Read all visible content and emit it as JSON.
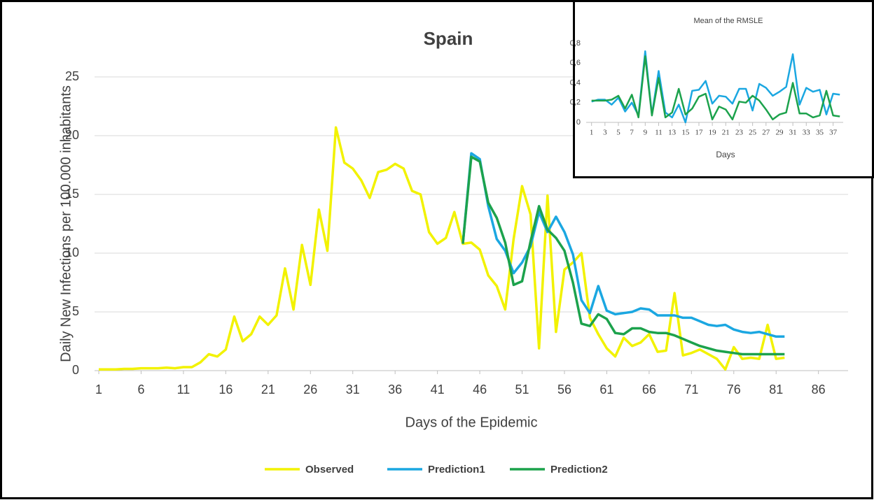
{
  "chart_data": [
    {
      "type": "line",
      "title": "Spain",
      "x_label": "Days of the Epidemic",
      "y_label": "Daily New Infections per 100.000 inhabitants",
      "x": [
        1,
        2,
        3,
        4,
        5,
        6,
        7,
        8,
        9,
        10,
        11,
        12,
        13,
        14,
        15,
        16,
        17,
        18,
        19,
        20,
        21,
        22,
        23,
        24,
        25,
        26,
        27,
        28,
        29,
        30,
        31,
        32,
        33,
        34,
        35,
        36,
        37,
        38,
        39,
        40,
        41,
        42,
        43,
        44,
        45,
        46,
        47,
        48,
        49,
        50,
        51,
        52,
        53,
        54,
        55,
        56,
        57,
        58,
        59,
        60,
        61,
        62,
        63,
        64,
        65,
        66,
        67,
        68,
        69,
        70,
        71,
        72,
        73,
        74,
        75,
        76,
        77,
        78,
        79,
        80,
        81,
        82
      ],
      "series": [
        {
          "name": "Observed",
          "color": "#f2f200",
          "values": [
            0.1,
            0.1,
            0.1,
            0.15,
            0.15,
            0.2,
            0.2,
            0.2,
            0.25,
            0.2,
            0.3,
            0.3,
            0.7,
            1.4,
            1.2,
            1.8,
            4.6,
            2.5,
            3.1,
            4.6,
            3.9,
            4.7,
            8.7,
            5.2,
            10.7,
            7.3,
            13.7,
            10.2,
            20.7,
            17.7,
            17.2,
            16.2,
            14.7,
            16.9,
            17.1,
            17.6,
            17.2,
            15.3,
            15.0,
            11.8,
            10.8,
            11.3,
            13.5,
            10.8,
            10.9,
            10.3,
            8.1,
            7.2,
            5.2,
            11.2,
            15.7,
            13.3,
            1.9,
            14.9,
            3.3,
            8.6,
            9.2,
            10.0,
            4.5,
            3.1,
            1.9,
            1.2,
            2.8,
            2.1,
            2.4,
            3.1,
            1.6,
            1.7,
            6.6,
            1.3,
            1.5,
            1.8,
            1.4,
            1.0,
            0.1,
            2.0,
            1.0,
            1.1,
            1.0,
            3.9,
            1.0,
            1.1
          ]
        },
        {
          "name": "Prediction1",
          "color": "#1ba7e1",
          "values": [
            null,
            null,
            null,
            null,
            null,
            null,
            null,
            null,
            null,
            null,
            null,
            null,
            null,
            null,
            null,
            null,
            null,
            null,
            null,
            null,
            null,
            null,
            null,
            null,
            null,
            null,
            null,
            null,
            null,
            null,
            null,
            null,
            null,
            null,
            null,
            null,
            null,
            null,
            null,
            null,
            null,
            null,
            null,
            10.8,
            18.5,
            18.0,
            14.0,
            11.2,
            10.2,
            8.3,
            9.2,
            10.6,
            13.5,
            11.8,
            13.1,
            11.8,
            9.9,
            6.0,
            4.9,
            7.2,
            5.1,
            4.8,
            4.9,
            5.0,
            5.3,
            5.2,
            4.7,
            4.7,
            4.7,
            4.5,
            4.5,
            4.2,
            3.9,
            3.8,
            3.9,
            3.5,
            3.3,
            3.2,
            3.3,
            3.1,
            2.9,
            2.9
          ]
        },
        {
          "name": "Prediction2",
          "color": "#1ca24c",
          "values": [
            null,
            null,
            null,
            null,
            null,
            null,
            null,
            null,
            null,
            null,
            null,
            null,
            null,
            null,
            null,
            null,
            null,
            null,
            null,
            null,
            null,
            null,
            null,
            null,
            null,
            null,
            null,
            null,
            null,
            null,
            null,
            null,
            null,
            null,
            null,
            null,
            null,
            null,
            null,
            null,
            null,
            null,
            null,
            10.8,
            18.2,
            17.8,
            14.3,
            13.0,
            10.9,
            7.3,
            7.6,
            11.0,
            14.0,
            12.0,
            11.3,
            10.2,
            7.5,
            4.0,
            3.8,
            4.8,
            4.4,
            3.2,
            3.1,
            3.6,
            3.6,
            3.3,
            3.2,
            3.2,
            3.0,
            2.7,
            2.4,
            2.1,
            1.9,
            1.7,
            1.6,
            1.5,
            1.4,
            1.4,
            1.4,
            1.4,
            1.4,
            1.4
          ]
        }
      ],
      "xlim": [
        0.5,
        89.5
      ],
      "xticks": [
        1,
        6,
        11,
        16,
        21,
        26,
        31,
        36,
        41,
        46,
        51,
        56,
        61,
        66,
        71,
        76,
        81,
        86
      ],
      "ylim": [
        0,
        25
      ],
      "yticks": [
        0,
        5,
        10,
        15,
        20,
        25
      ],
      "grid": true,
      "legend": "bottom"
    },
    {
      "type": "line",
      "title": "Mean of the RMSLE",
      "x_label": "Days",
      "x": [
        1,
        2,
        3,
        4,
        5,
        6,
        7,
        8,
        9,
        10,
        11,
        12,
        13,
        14,
        15,
        16,
        17,
        18,
        19,
        20,
        21,
        22,
        23,
        24,
        25,
        26,
        27,
        28,
        29,
        30,
        31,
        32,
        33,
        34,
        35,
        36,
        37,
        38
      ],
      "series": [
        {
          "color": "#1ba7e1",
          "values": [
            0.21,
            0.23,
            0.23,
            0.18,
            0.25,
            0.11,
            0.2,
            0.07,
            0.72,
            0.08,
            0.52,
            0.1,
            0.05,
            0.18,
            0.0,
            0.32,
            0.33,
            0.42,
            0.19,
            0.27,
            0.26,
            0.19,
            0.34,
            0.34,
            0.12,
            0.39,
            0.35,
            0.27,
            0.31,
            0.36,
            0.69,
            0.18,
            0.35,
            0.31,
            0.33,
            0.08,
            0.29,
            0.28
          ]
        },
        {
          "color": "#1ca24c",
          "values": [
            0.22,
            0.22,
            0.22,
            0.23,
            0.27,
            0.14,
            0.28,
            0.05,
            0.67,
            0.07,
            0.45,
            0.05,
            0.1,
            0.34,
            0.08,
            0.14,
            0.26,
            0.29,
            0.03,
            0.16,
            0.13,
            0.03,
            0.21,
            0.2,
            0.27,
            0.22,
            0.13,
            0.03,
            0.08,
            0.1,
            0.4,
            0.09,
            0.09,
            0.05,
            0.07,
            0.32,
            0.07,
            0.06
          ]
        }
      ],
      "xlim": [
        0.2,
        38.5
      ],
      "xticks": [
        1,
        3,
        5,
        7,
        9,
        11,
        13,
        15,
        17,
        19,
        21,
        23,
        25,
        27,
        29,
        31,
        33,
        35,
        37
      ],
      "ylim": [
        0,
        0.8
      ],
      "yticks": [
        0,
        {
          "value": 0.2,
          "label": "0,2"
        },
        {
          "value": 0.4,
          "label": "0,4"
        },
        {
          "value": 0.6,
          "label": "0,6"
        },
        {
          "value": 0.8,
          "label": "0,8"
        }
      ],
      "grid": false
    }
  ]
}
